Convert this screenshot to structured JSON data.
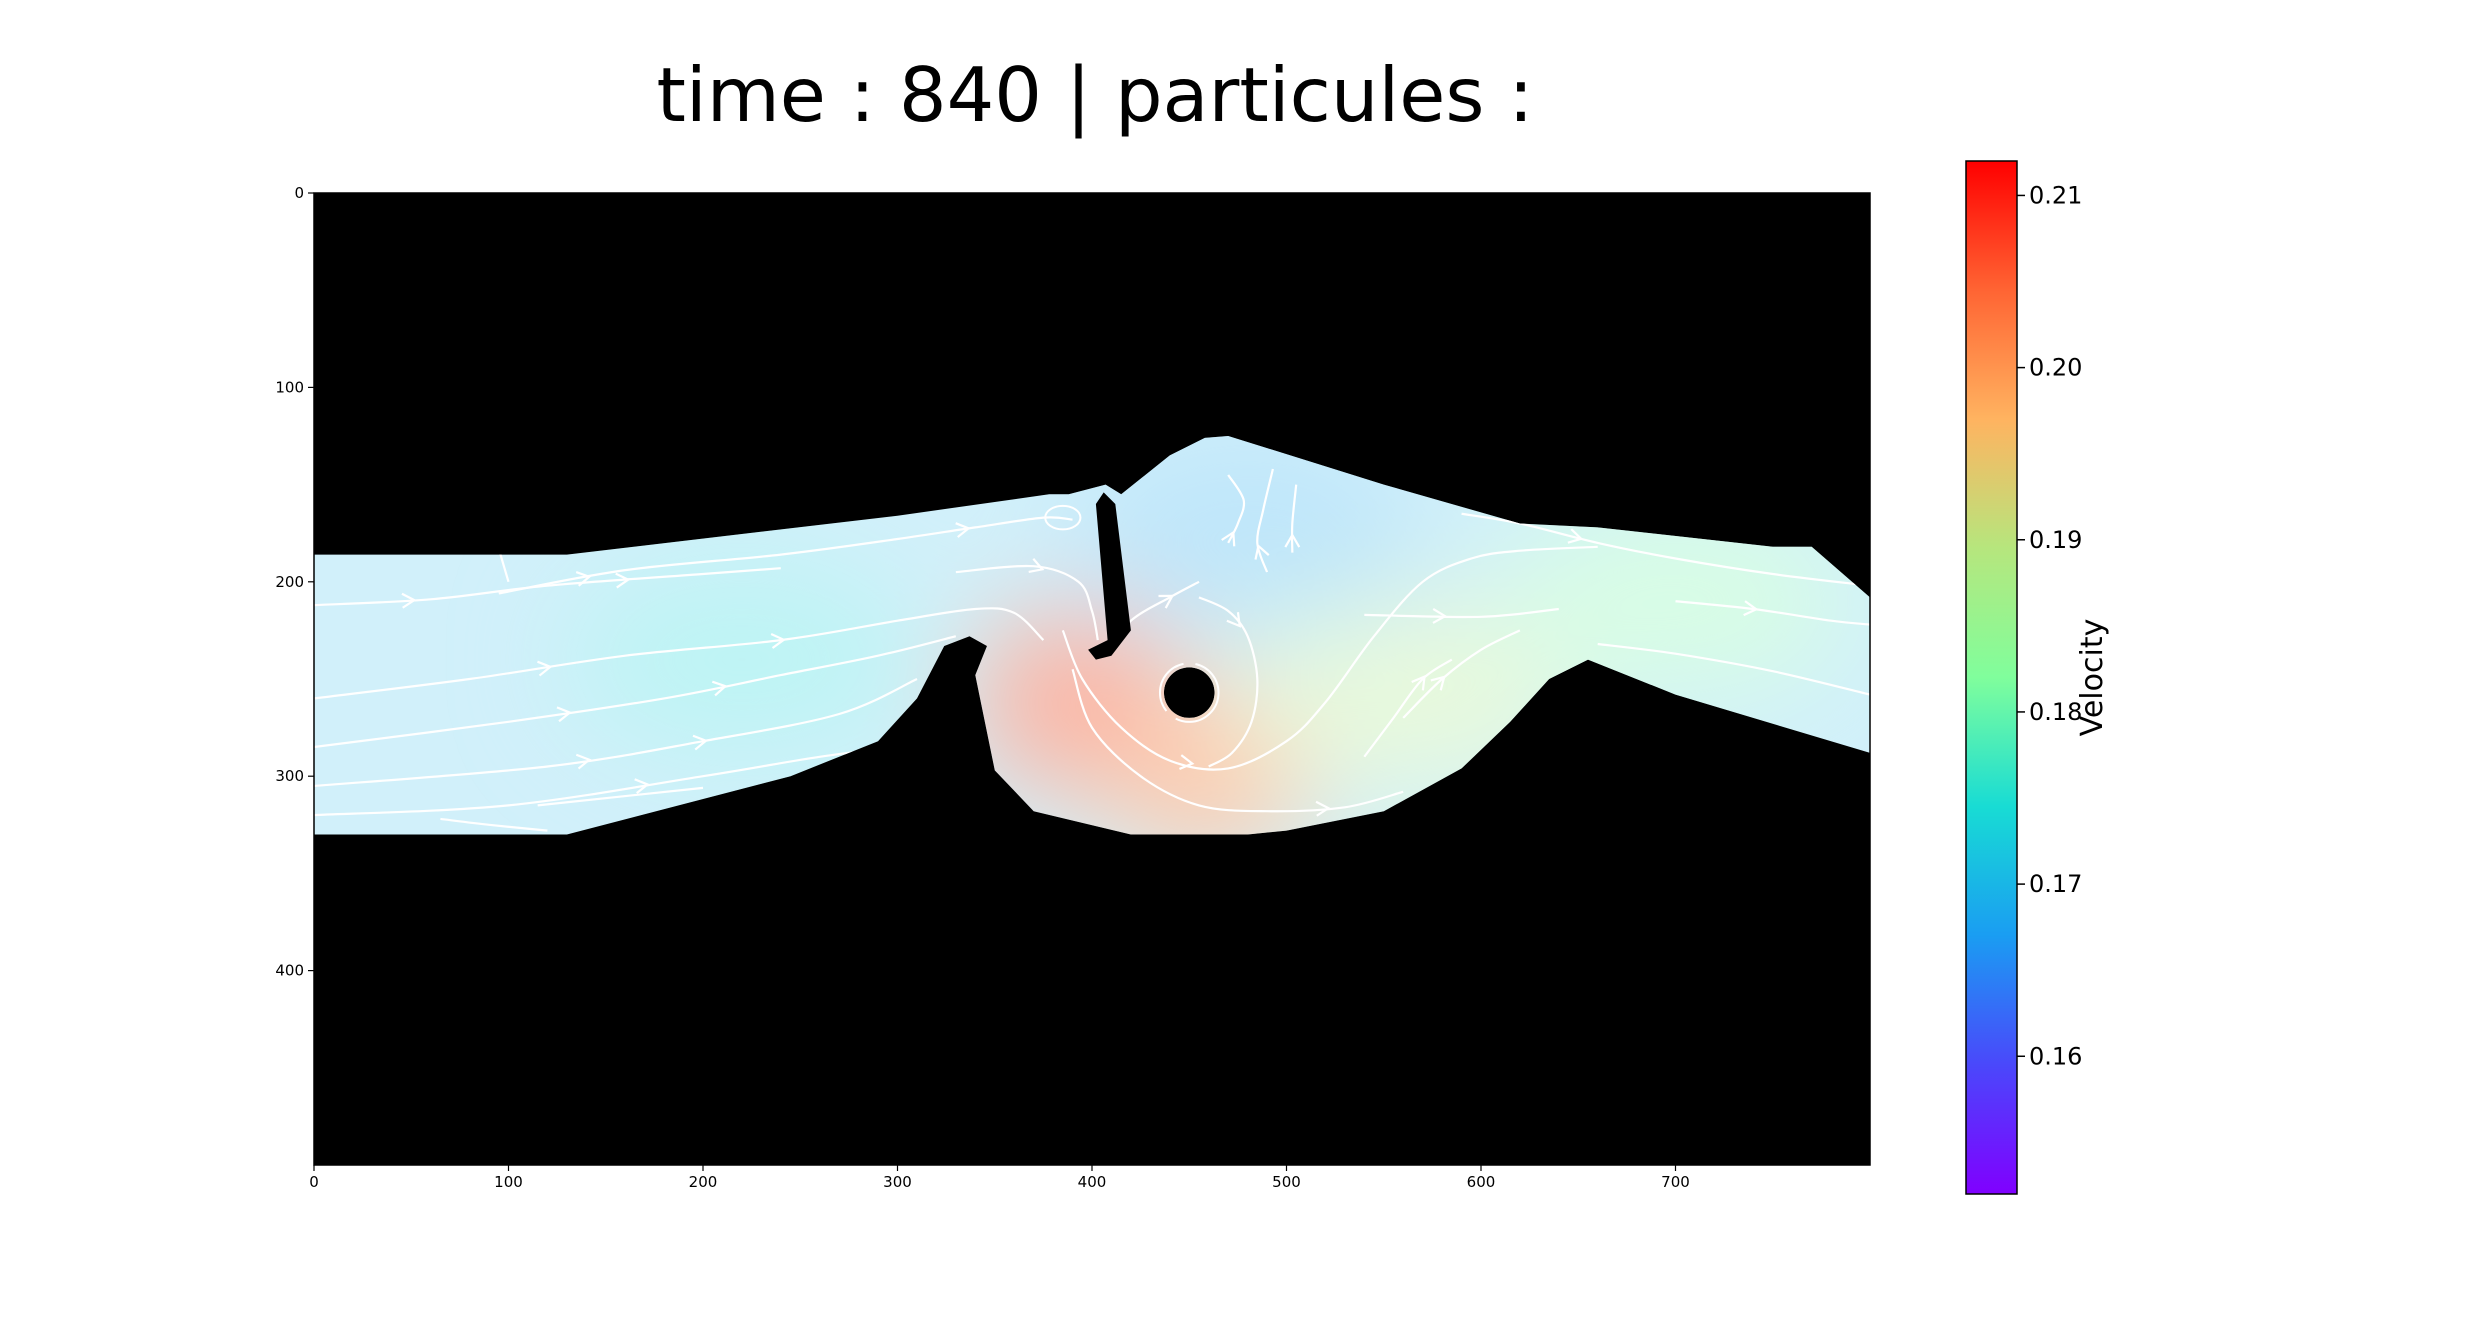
{
  "chart_data": {
    "type": "heatmap",
    "title": "time : 840 | particules :",
    "xlabel": "",
    "ylabel": "",
    "xlim": [
      0,
      800
    ],
    "ylim": [
      500,
      0
    ],
    "x_ticks": [
      0,
      100,
      200,
      300,
      400,
      500,
      600,
      700
    ],
    "y_ticks": [
      0,
      100,
      200,
      300,
      400
    ],
    "grid": false,
    "background_color": "#000000",
    "colormap": "rainbow",
    "colorbar": {
      "label": "Velocity",
      "range": [
        0.152,
        0.212
      ],
      "ticks": [
        0.16,
        0.17,
        0.18,
        0.19,
        0.2,
        0.21
      ],
      "tick_labels": [
        "0.16",
        "0.17",
        "0.18",
        "0.19",
        "0.20",
        "0.21"
      ]
    },
    "channel": {
      "top_boundary": [
        [
          0,
          186
        ],
        [
          130,
          186
        ],
        [
          300,
          166
        ],
        [
          378,
          155
        ],
        [
          388,
          155
        ],
        [
          407,
          150
        ],
        [
          415,
          155
        ],
        [
          440,
          135
        ],
        [
          458,
          126
        ],
        [
          470,
          125
        ],
        [
          550,
          150
        ],
        [
          620,
          170
        ],
        [
          660,
          172
        ],
        [
          750,
          182
        ],
        [
          770,
          182
        ],
        [
          800,
          208
        ]
      ],
      "bottom_boundary": [
        [
          800,
          288
        ],
        [
          700,
          258
        ],
        [
          655,
          240
        ],
        [
          635,
          250
        ],
        [
          615,
          272
        ],
        [
          590,
          296
        ],
        [
          550,
          318
        ],
        [
          500,
          328
        ],
        [
          480,
          330
        ],
        [
          420,
          330
        ],
        [
          370,
          318
        ],
        [
          350,
          297
        ],
        [
          340,
          248
        ],
        [
          346,
          233
        ],
        [
          337,
          228
        ],
        [
          324,
          233
        ],
        [
          310,
          260
        ],
        [
          290,
          282
        ],
        [
          245,
          300
        ],
        [
          130,
          330
        ],
        [
          0,
          330
        ]
      ],
      "baffle": [
        [
          406,
          154
        ],
        [
          412,
          160
        ],
        [
          420,
          225
        ],
        [
          410,
          238
        ],
        [
          402,
          240
        ],
        [
          398,
          235
        ],
        [
          408,
          230
        ],
        [
          402,
          160
        ]
      ],
      "obstacle_circle": {
        "cx": 450,
        "cy": 257,
        "r": 13
      }
    },
    "velocity_hotspots": [
      {
        "x": 393,
        "y": 262,
        "value": 0.206
      },
      {
        "x": 460,
        "y": 298,
        "value": 0.201
      },
      {
        "x": 560,
        "y": 258,
        "value": 0.188
      },
      {
        "x": 480,
        "y": 175,
        "value": 0.168
      },
      {
        "x": 700,
        "y": 210,
        "value": 0.181
      },
      {
        "x": 220,
        "y": 240,
        "value": 0.174
      }
    ],
    "streamlines": [
      {
        "points": [
          [
            0,
            212
          ],
          [
            60,
            209
          ],
          [
            120,
            202
          ],
          [
            200,
            196
          ],
          [
            240,
            193
          ]
        ],
        "arrows_at": [
          50,
          160
        ]
      },
      {
        "points": [
          [
            95,
            183
          ],
          [
            100,
            200
          ]
        ],
        "arrows_at": []
      },
      {
        "points": [
          [
            95,
            206
          ],
          [
            160,
            194
          ],
          [
            240,
            186
          ],
          [
            300,
            178
          ],
          [
            340,
            172
          ],
          [
            375,
            167
          ],
          [
            390,
            168
          ]
        ],
        "arrows_at": [
          140,
          335
        ]
      },
      {
        "points": [
          [
            0,
            260
          ],
          [
            80,
            250
          ],
          [
            160,
            238
          ],
          [
            240,
            230
          ],
          [
            300,
            220
          ],
          [
            340,
            214
          ],
          [
            360,
            216
          ],
          [
            375,
            230
          ]
        ],
        "arrows_at": [
          120,
          240
        ]
      },
      {
        "points": [
          [
            0,
            285
          ],
          [
            100,
            272
          ],
          [
            180,
            260
          ],
          [
            240,
            248
          ],
          [
            290,
            238
          ],
          [
            330,
            228
          ]
        ],
        "arrows_at": [
          130,
          210
        ]
      },
      {
        "points": [
          [
            0,
            305
          ],
          [
            120,
            295
          ],
          [
            200,
            282
          ],
          [
            270,
            268
          ],
          [
            310,
            250
          ]
        ],
        "arrows_at": [
          140,
          200
        ]
      },
      {
        "points": [
          [
            0,
            320
          ],
          [
            100,
            315
          ],
          [
            200,
            300
          ],
          [
            260,
            290
          ],
          [
            300,
            285
          ]
        ],
        "arrows_at": [
          170
        ]
      },
      {
        "points": [
          [
            65,
            322
          ],
          [
            90,
            325
          ],
          [
            120,
            328
          ]
        ],
        "arrows_at": [
          60
        ]
      },
      {
        "points": [
          [
            115,
            315
          ],
          [
            200,
            306
          ]
        ],
        "arrows_at": []
      },
      {
        "points": [
          [
            330,
            195
          ],
          [
            370,
            192
          ],
          [
            393,
            200
          ],
          [
            400,
            215
          ],
          [
            403,
            230
          ]
        ],
        "arrows_at": [
          373
        ]
      },
      {
        "points": [
          [
            385,
            225
          ],
          [
            395,
            250
          ],
          [
            415,
            275
          ],
          [
            440,
            292
          ],
          [
            470,
            296
          ],
          [
            500,
            282
          ],
          [
            520,
            262
          ],
          [
            545,
            228
          ],
          [
            570,
            200
          ],
          [
            595,
            188
          ],
          [
            620,
            184
          ],
          [
            660,
            182
          ]
        ],
        "arrows_at": [
          450
        ]
      },
      {
        "points": [
          [
            390,
            245
          ],
          [
            400,
            275
          ],
          [
            425,
            300
          ],
          [
            455,
            315
          ],
          [
            490,
            318
          ],
          [
            530,
            316
          ],
          [
            560,
            308
          ]
        ],
        "arrows_at": [
          520
        ]
      },
      {
        "points": [
          [
            405,
            238
          ],
          [
            420,
            220
          ],
          [
            440,
            208
          ],
          [
            455,
            200
          ]
        ],
        "arrows_at": [
          440
        ]
      },
      {
        "points": [
          [
            455,
            208
          ],
          [
            470,
            215
          ],
          [
            480,
            228
          ],
          [
            485,
            250
          ],
          [
            482,
            272
          ],
          [
            472,
            288
          ],
          [
            460,
            295
          ]
        ],
        "arrows_at": [
          475
        ]
      },
      {
        "points": [
          [
            470,
            180
          ],
          [
            475,
            170
          ],
          [
            478,
            158
          ],
          [
            470,
            145
          ]
        ],
        "arrows_at": [
          472
        ]
      },
      {
        "points": [
          [
            490,
            195
          ],
          [
            485,
            180
          ],
          [
            488,
            163
          ],
          [
            493,
            142
          ]
        ],
        "arrows_at": [
          486
        ]
      },
      {
        "points": [
          [
            503,
            185
          ],
          [
            503,
            170
          ],
          [
            505,
            150
          ]
        ],
        "arrows_at": [
          503
        ]
      },
      {
        "points": [
          [
            540,
            290
          ],
          [
            555,
            270
          ],
          [
            570,
            250
          ],
          [
            585,
            240
          ]
        ],
        "arrows_at": [
          570
        ]
      },
      {
        "points": [
          [
            560,
            270
          ],
          [
            580,
            250
          ],
          [
            600,
            235
          ],
          [
            620,
            225
          ]
        ],
        "arrows_at": [
          580
        ]
      },
      {
        "points": [
          [
            540,
            217
          ],
          [
            600,
            218
          ],
          [
            640,
            214
          ]
        ],
        "arrows_at": [
          580
        ]
      },
      {
        "points": [
          [
            590,
            165
          ],
          [
            620,
            170
          ],
          [
            660,
            180
          ],
          [
            700,
            188
          ],
          [
            750,
            196
          ],
          [
            800,
            202
          ]
        ],
        "arrows_at": [
          650
        ]
      },
      {
        "points": [
          [
            700,
            210
          ],
          [
            740,
            214
          ],
          [
            780,
            220
          ],
          [
            800,
            222
          ]
        ],
        "arrows_at": [
          740
        ]
      },
      {
        "points": [
          [
            660,
            232
          ],
          [
            700,
            237
          ],
          [
            750,
            246
          ],
          [
            800,
            258
          ]
        ],
        "arrows_at": []
      }
    ],
    "eddies": [
      {
        "cx": 385,
        "cy": 167,
        "rx": 7,
        "ry": 4
      },
      {
        "cx": 450,
        "cy": 257,
        "rx": 13,
        "ry": 13
      }
    ]
  }
}
